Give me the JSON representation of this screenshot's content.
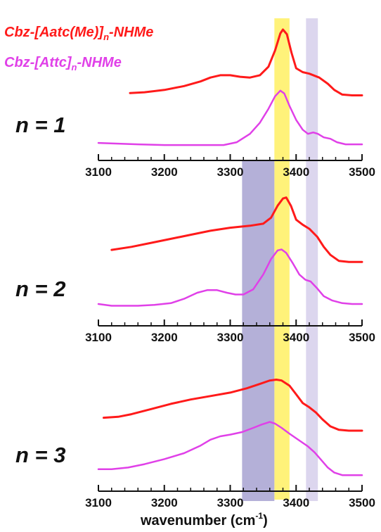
{
  "legend": {
    "series1_pre": "Cbz-[Aatc(Me)]",
    "series1_sub": "n",
    "series1_post": "-NHMe",
    "series2_pre": "Cbz-[Attc]",
    "series2_sub": "n",
    "series2_post": "-NHMe"
  },
  "xaxis": {
    "label_pre": "wavenumber (cm",
    "label_sup": "-1",
    "label_post": ")"
  },
  "chart_data": {
    "type": "line",
    "xlabel": "wavenumber (cm-1)",
    "xlim": [
      3100,
      3500
    ],
    "xticks": [
      3100,
      3200,
      3300,
      3400,
      3500
    ],
    "colors": {
      "series1": "#ff1a1a",
      "series2": "#e040e8",
      "yellow_band": "#fff27a",
      "dark_band": "#b4b0d8",
      "light_band": "#dcd6ee"
    },
    "bands": [
      {
        "name": "yellow",
        "from": 3367,
        "to": 3390
      },
      {
        "name": "dark",
        "from": 3318,
        "to": 3367
      },
      {
        "name": "light",
        "from": 3415,
        "to": 3433
      }
    ],
    "panels": [
      {
        "label": "n = 1",
        "series": [
          {
            "name": "Cbz-[Aatc(Me)]n-NHMe",
            "points": [
              [
                3148,
                0.18
              ],
              [
                3170,
                0.19
              ],
              [
                3200,
                0.22
              ],
              [
                3230,
                0.27
              ],
              [
                3255,
                0.33
              ],
              [
                3270,
                0.38
              ],
              [
                3285,
                0.41
              ],
              [
                3300,
                0.41
              ],
              [
                3315,
                0.39
              ],
              [
                3330,
                0.38
              ],
              [
                3345,
                0.41
              ],
              [
                3358,
                0.52
              ],
              [
                3368,
                0.73
              ],
              [
                3376,
                0.95
              ],
              [
                3380,
                1.0
              ],
              [
                3386,
                0.94
              ],
              [
                3393,
                0.7
              ],
              [
                3400,
                0.5
              ],
              [
                3410,
                0.45
              ],
              [
                3420,
                0.43
              ],
              [
                3435,
                0.38
              ],
              [
                3448,
                0.3
              ],
              [
                3458,
                0.22
              ],
              [
                3470,
                0.16
              ],
              [
                3485,
                0.15
              ],
              [
                3500,
                0.15
              ]
            ]
          },
          {
            "name": "Cbz-[Attc]n-NHMe",
            "points": [
              [
                3100,
                0.09
              ],
              [
                3130,
                0.08
              ],
              [
                3160,
                0.07
              ],
              [
                3200,
                0.06
              ],
              [
                3250,
                0.06
              ],
              [
                3290,
                0.06
              ],
              [
                3310,
                0.1
              ],
              [
                3330,
                0.22
              ],
              [
                3345,
                0.38
              ],
              [
                3358,
                0.58
              ],
              [
                3368,
                0.76
              ],
              [
                3376,
                0.84
              ],
              [
                3382,
                0.8
              ],
              [
                3390,
                0.62
              ],
              [
                3400,
                0.42
              ],
              [
                3410,
                0.28
              ],
              [
                3418,
                0.22
              ],
              [
                3426,
                0.24
              ],
              [
                3433,
                0.22
              ],
              [
                3442,
                0.17
              ],
              [
                3452,
                0.15
              ],
              [
                3462,
                0.1
              ],
              [
                3475,
                0.07
              ],
              [
                3500,
                0.07
              ]
            ]
          }
        ]
      },
      {
        "label": "n = 2",
        "series": [
          {
            "name": "Cbz-[Aatc(Me)]n-NHMe",
            "points": [
              [
                3120,
                0.44
              ],
              [
                3150,
                0.47
              ],
              [
                3180,
                0.51
              ],
              [
                3210,
                0.55
              ],
              [
                3240,
                0.59
              ],
              [
                3270,
                0.63
              ],
              [
                3300,
                0.66
              ],
              [
                3330,
                0.68
              ],
              [
                3350,
                0.7
              ],
              [
                3362,
                0.76
              ],
              [
                3372,
                0.88
              ],
              [
                3380,
                0.95
              ],
              [
                3385,
                0.96
              ],
              [
                3392,
                0.88
              ],
              [
                3400,
                0.74
              ],
              [
                3410,
                0.69
              ],
              [
                3420,
                0.65
              ],
              [
                3432,
                0.57
              ],
              [
                3442,
                0.47
              ],
              [
                3452,
                0.39
              ],
              [
                3465,
                0.33
              ],
              [
                3480,
                0.32
              ],
              [
                3500,
                0.32
              ]
            ]
          },
          {
            "name": "Cbz-[Attc]n-NHMe",
            "points": [
              [
                3100,
                0.13
              ],
              [
                3120,
                0.11
              ],
              [
                3140,
                0.11
              ],
              [
                3160,
                0.11
              ],
              [
                3185,
                0.12
              ],
              [
                3210,
                0.14
              ],
              [
                3230,
                0.19
              ],
              [
                3250,
                0.26
              ],
              [
                3265,
                0.29
              ],
              [
                3280,
                0.29
              ],
              [
                3295,
                0.26
              ],
              [
                3308,
                0.24
              ],
              [
                3320,
                0.24
              ],
              [
                3335,
                0.3
              ],
              [
                3350,
                0.47
              ],
              [
                3362,
                0.65
              ],
              [
                3372,
                0.75
              ],
              [
                3378,
                0.76
              ],
              [
                3385,
                0.72
              ],
              [
                3395,
                0.6
              ],
              [
                3405,
                0.47
              ],
              [
                3414,
                0.41
              ],
              [
                3422,
                0.39
              ],
              [
                3432,
                0.31
              ],
              [
                3442,
                0.22
              ],
              [
                3455,
                0.17
              ],
              [
                3470,
                0.14
              ],
              [
                3485,
                0.13
              ],
              [
                3500,
                0.13
              ]
            ]
          }
        ]
      },
      {
        "label": "n = 3",
        "series": [
          {
            "name": "Cbz-[Aatc(Me)]n-NHMe",
            "points": [
              [
                3108,
                0.41
              ],
              [
                3130,
                0.42
              ],
              [
                3150,
                0.45
              ],
              [
                3180,
                0.51
              ],
              [
                3210,
                0.57
              ],
              [
                3240,
                0.62
              ],
              [
                3270,
                0.66
              ],
              [
                3300,
                0.7
              ],
              [
                3325,
                0.75
              ],
              [
                3345,
                0.8
              ],
              [
                3360,
                0.84
              ],
              [
                3370,
                0.85
              ],
              [
                3378,
                0.84
              ],
              [
                3390,
                0.78
              ],
              [
                3400,
                0.68
              ],
              [
                3410,
                0.58
              ],
              [
                3420,
                0.53
              ],
              [
                3430,
                0.47
              ],
              [
                3440,
                0.39
              ],
              [
                3452,
                0.31
              ],
              [
                3465,
                0.27
              ],
              [
                3480,
                0.26
              ],
              [
                3500,
                0.26
              ]
            ]
          },
          {
            "name": "Cbz-[Attc]n-NHMe",
            "points": [
              [
                3100,
                0.11
              ],
              [
                3120,
                0.11
              ],
              [
                3145,
                0.13
              ],
              [
                3170,
                0.17
              ],
              [
                3200,
                0.23
              ],
              [
                3230,
                0.3
              ],
              [
                3255,
                0.39
              ],
              [
                3270,
                0.46
              ],
              [
                3285,
                0.5
              ],
              [
                3300,
                0.52
              ],
              [
                3318,
                0.55
              ],
              [
                3335,
                0.6
              ],
              [
                3348,
                0.64
              ],
              [
                3360,
                0.67
              ],
              [
                3368,
                0.65
              ],
              [
                3378,
                0.6
              ],
              [
                3390,
                0.53
              ],
              [
                3405,
                0.45
              ],
              [
                3418,
                0.38
              ],
              [
                3428,
                0.31
              ],
              [
                3438,
                0.22
              ],
              [
                3448,
                0.13
              ],
              [
                3458,
                0.07
              ],
              [
                3470,
                0.04
              ],
              [
                3485,
                0.04
              ],
              [
                3500,
                0.04
              ]
            ]
          }
        ]
      }
    ]
  }
}
